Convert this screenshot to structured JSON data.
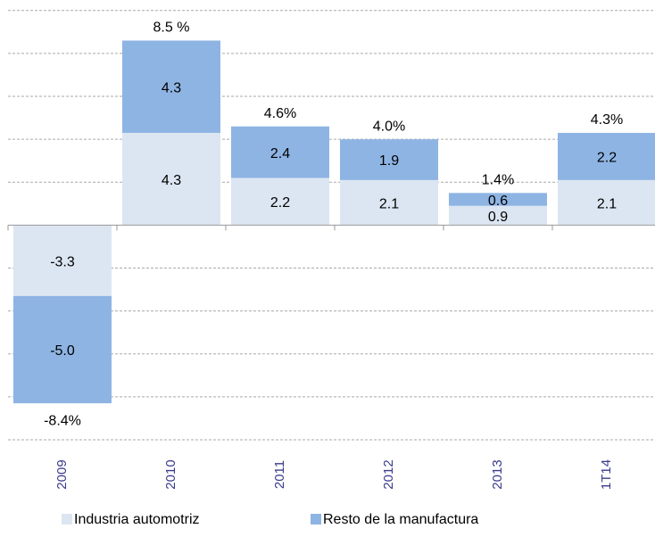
{
  "chart_data": {
    "type": "stacked_bar",
    "categories": [
      "2009",
      "2010",
      "2011",
      "2012",
      "2013",
      "1T14"
    ],
    "series": [
      {
        "name": "Industria automotriz",
        "color": "#dce6f2",
        "values": [
          -3.3,
          4.3,
          2.2,
          2.1,
          0.9,
          2.1
        ],
        "value_labels": [
          "-3.3",
          "4.3",
          "2.2",
          "2.1",
          "0.9",
          "2.1"
        ]
      },
      {
        "name": "Resto de la manufactura",
        "color": "#8eb4e3",
        "values": [
          -5.0,
          4.3,
          2.4,
          1.9,
          0.6,
          2.2
        ],
        "value_labels": [
          "-5.0",
          "4.3",
          "2.4",
          "1.9",
          "0.6",
          "2.2"
        ]
      }
    ],
    "totals": {
      "values": [
        -8.4,
        8.5,
        4.6,
        4.0,
        1.4,
        4.3
      ],
      "value_labels": [
        "-8.4%",
        "8.5 %",
        "4.6%",
        "4.0%",
        "1.4%",
        "4.3%"
      ]
    },
    "ylim": [
      -10,
      10.2
    ],
    "yticks": [
      -10,
      -8,
      -6,
      -4,
      -2,
      2,
      4,
      6,
      8,
      10
    ],
    "grid": true,
    "show_ytick_labels": false,
    "legend": "bottom"
  }
}
